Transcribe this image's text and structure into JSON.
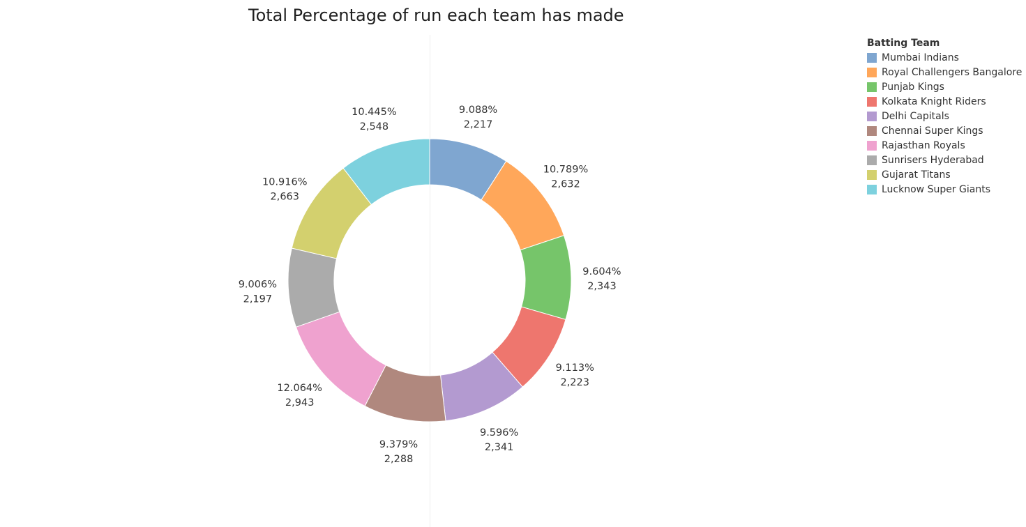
{
  "chart_data": {
    "type": "pie",
    "title": "Total Percentage of run each team has made",
    "legend_title": "Batting Team",
    "legend_position": "top-right",
    "donut": true,
    "slices": [
      {
        "name": "Mumbai Indians",
        "value": 2217,
        "value_label": "2,217",
        "percent_label": "9.088%",
        "color": "#7fa6d0"
      },
      {
        "name": "Royal Challengers Bangalore",
        "value": 2632,
        "value_label": "2,632",
        "percent_label": "10.789%",
        "color": "#ffa75a"
      },
      {
        "name": "Punjab Kings",
        "value": 2343,
        "value_label": "2,343",
        "percent_label": "9.604%",
        "color": "#76c56a"
      },
      {
        "name": "Kolkata Knight Riders",
        "value": 2223,
        "value_label": "2,223",
        "percent_label": "9.113%",
        "color": "#ee766e"
      },
      {
        "name": "Delhi Capitals",
        "value": 2341,
        "value_label": "2,341",
        "percent_label": "9.596%",
        "color": "#b39ad0"
      },
      {
        "name": "Chennai Super Kings",
        "value": 2288,
        "value_label": "2,288",
        "percent_label": "9.379%",
        "color": "#b0887e"
      },
      {
        "name": "Rajasthan Royals",
        "value": 2943,
        "value_label": "2,943",
        "percent_label": "12.064%",
        "color": "#efa2cf"
      },
      {
        "name": "Sunrisers Hyderabad",
        "value": 2197,
        "value_label": "2,197",
        "percent_label": "9.006%",
        "color": "#ababab"
      },
      {
        "name": "Gujarat Titans",
        "value": 2663,
        "value_label": "2,663",
        "percent_label": "10.916%",
        "color": "#d3d06e"
      },
      {
        "name": "Lucknow Super Giants",
        "value": 2548,
        "value_label": "2,548",
        "percent_label": "10.445%",
        "color": "#7dd1de"
      }
    ]
  }
}
